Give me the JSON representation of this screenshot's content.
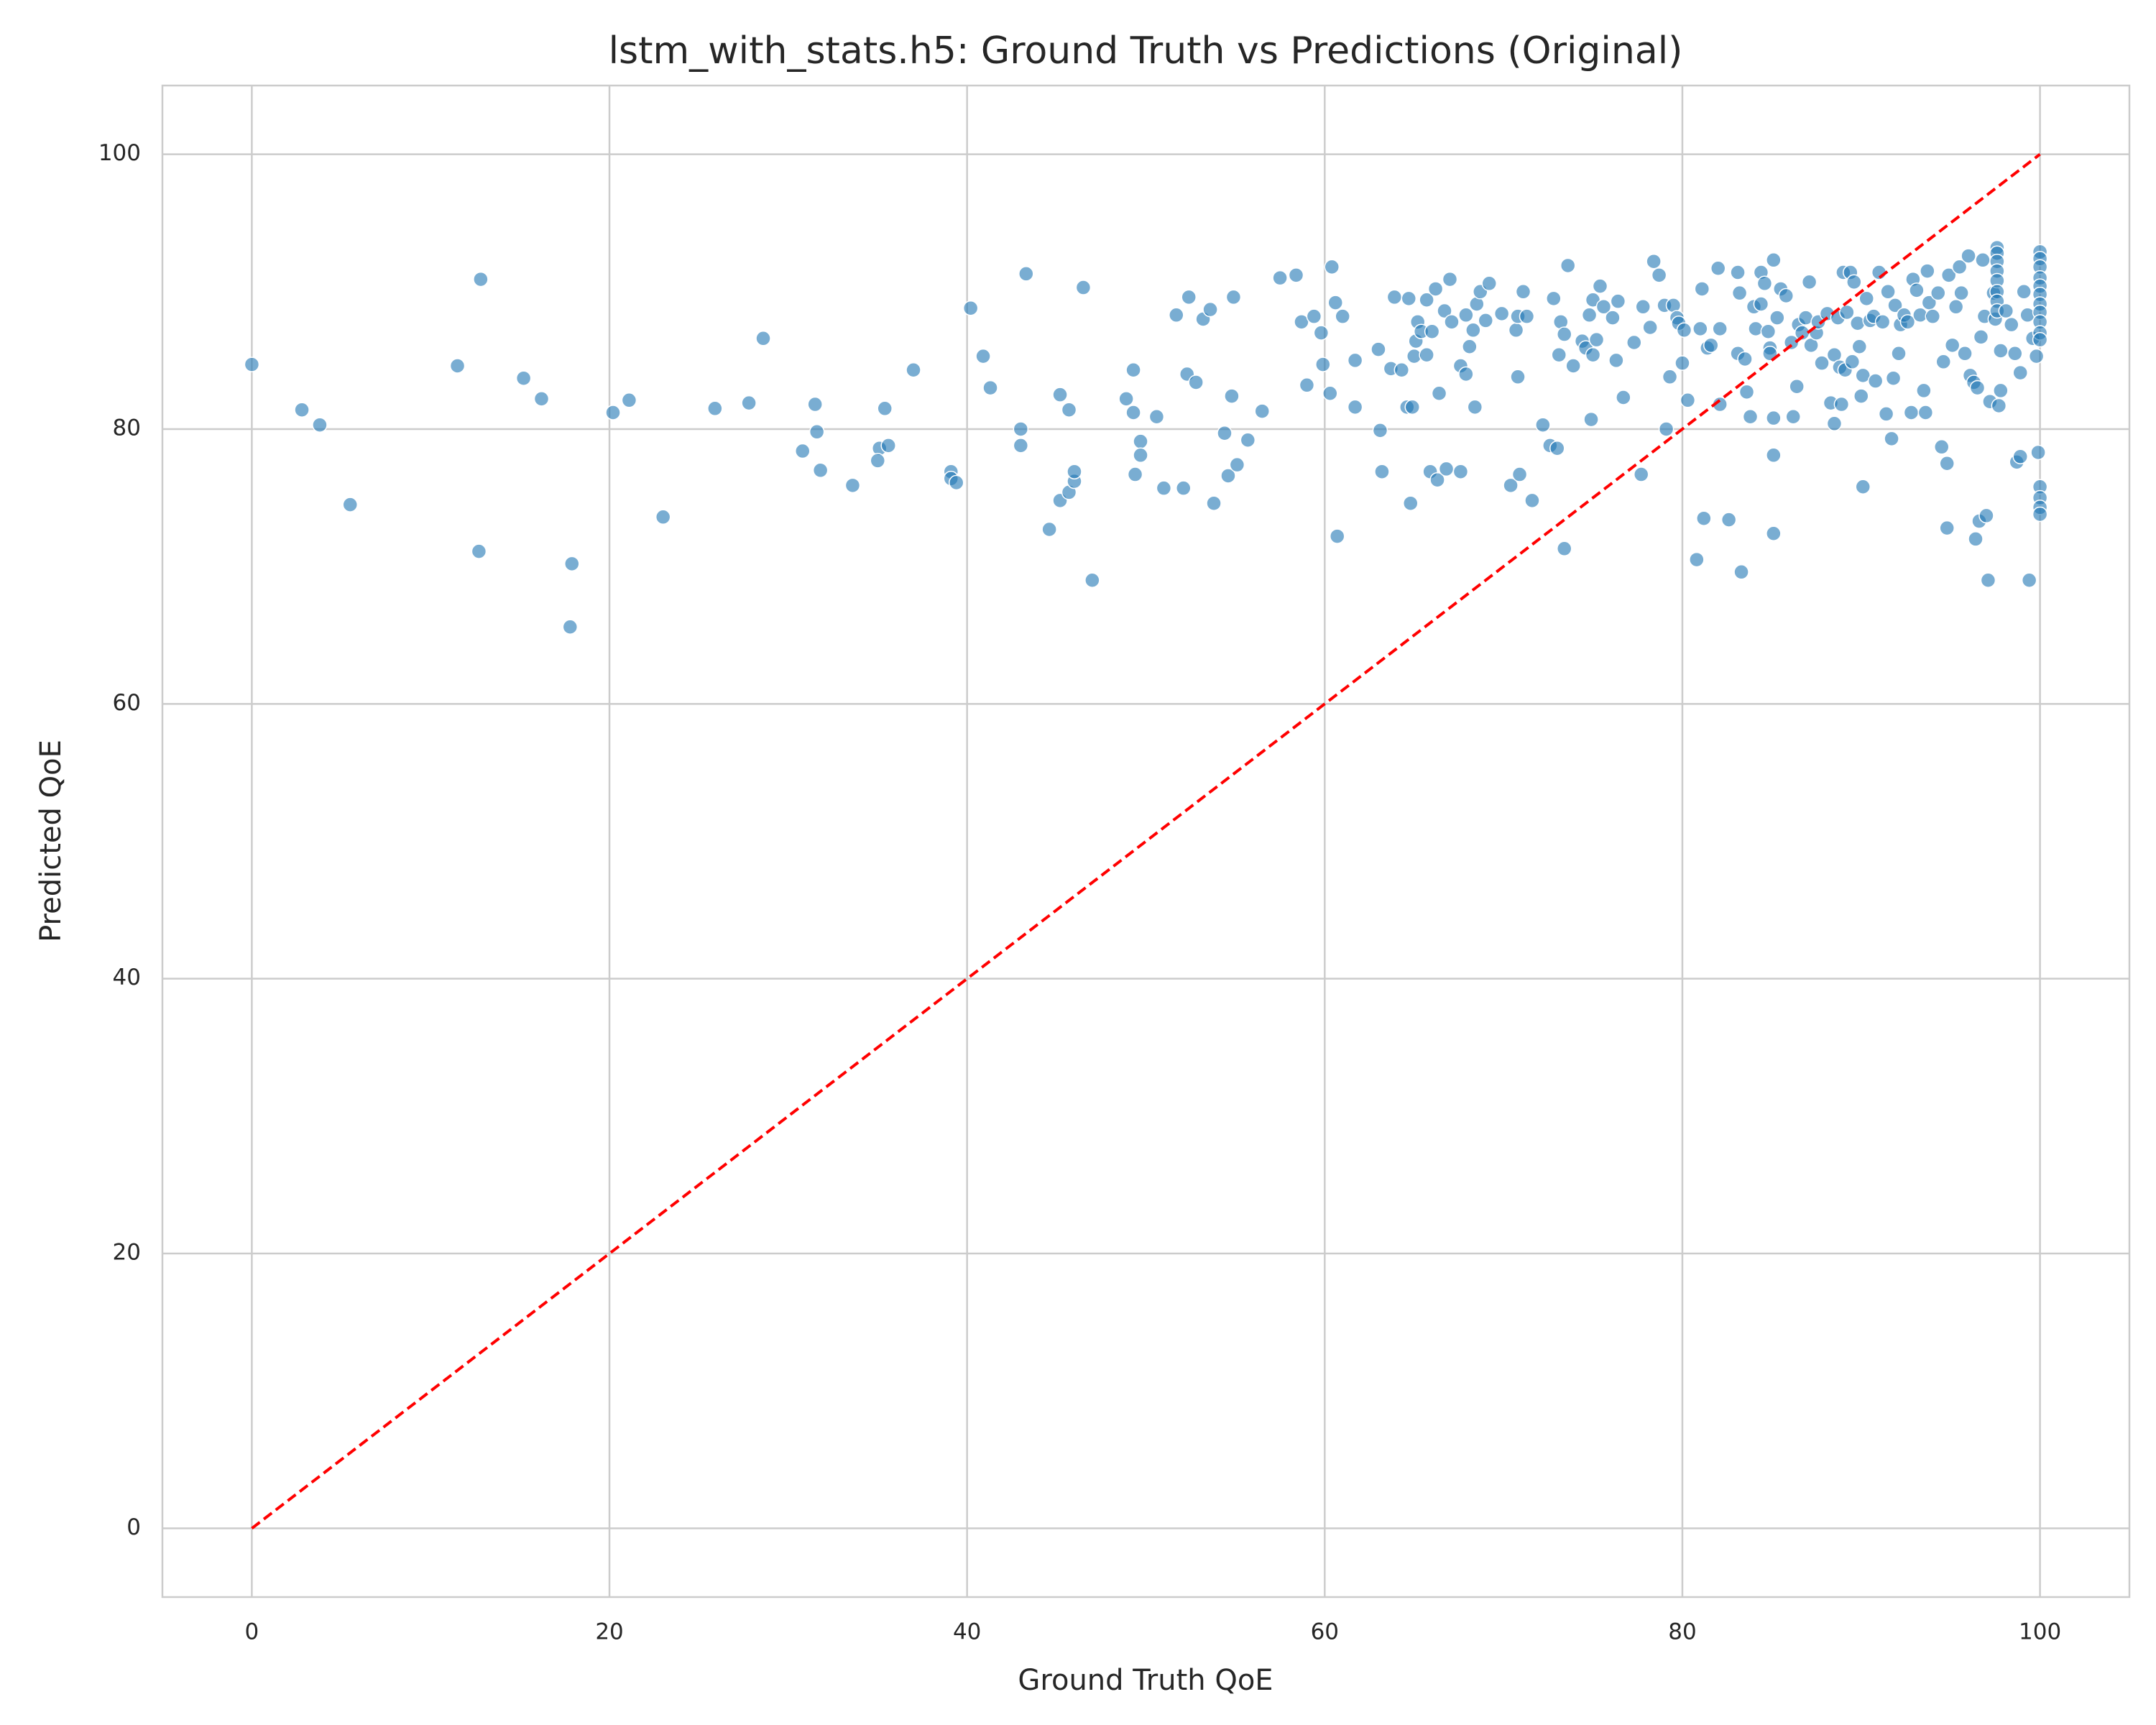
{
  "chart_data": {
    "type": "scatter",
    "title": "lstm_with_stats.h5: Ground Truth vs Predictions (Original)",
    "x_label": "Ground Truth QoE",
    "y_label": "Predicted QoE",
    "xlim": [
      -5,
      105
    ],
    "ylim": [
      -5,
      105
    ],
    "xticks": [
      0,
      20,
      40,
      60,
      80,
      100
    ],
    "yticks": [
      0,
      20,
      40,
      60,
      80,
      100
    ],
    "grid": true,
    "color": "#1f77b4",
    "x": [
      0,
      2.8,
      3.8,
      5.5,
      11.5,
      12.8,
      12.7,
      15.2,
      16.2,
      17.9,
      17.8,
      20.2,
      21.1,
      23.0,
      25.9,
      27.8,
      28.6,
      30.8,
      31.5,
      31.6,
      31.8,
      33.6,
      35.1,
      35.0,
      35.4,
      35.6,
      37.0,
      39.1,
      39.1,
      39.4,
      40.2,
      40.9,
      41.3,
      43.0,
      43.0,
      43.3,
      44.6,
      45.2,
      45.2,
      45.7,
      45.7,
      46.0,
      46.0,
      46.5,
      47.0,
      48.9,
      49.3,
      49.3,
      49.4,
      49.7,
      49.7,
      50.6,
      51.0,
      51.7,
      52.1,
      52.3,
      52.4,
      52.8,
      53.2,
      53.6,
      53.8,
      54.4,
      54.6,
      54.8,
      54.9,
      55.1,
      55.7,
      56.5,
      57.5,
      58.4,
      58.7,
      59.0,
      59.4,
      59.8,
      59.9,
      60.3,
      60.4,
      60.6,
      60.7,
      61.0,
      61.7,
      61.7,
      63.0,
      63.1,
      63.2,
      63.7,
      63.9,
      64.3,
      64.6,
      64.7,
      64.8,
      64.9,
      65.0,
      65.1,
      65.2,
      65.4,
      65.7,
      65.7,
      65.9,
      66.0,
      66.2,
      66.3,
      66.4,
      66.7,
      66.8,
      67.0,
      67.1,
      67.6,
      67.6,
      67.9,
      67.9,
      68.1,
      68.3,
      68.4,
      68.5,
      68.7,
      69.0,
      69.2,
      69.9,
      70.4,
      70.7,
      70.8,
      70.9,
      71.1,
      70.8,
      71.3,
      71.6,
      72.2,
      72.6,
      72.8,
      73.0,
      73.1,
      73.2,
      73.4,
      73.4,
      73.6,
      73.9,
      74.4,
      74.6,
      74.8,
      74.9,
      75.0,
      75.0,
      75.2,
      75.4,
      75.6,
      76.1,
      76.3,
      76.4,
      76.7,
      77.3,
      77.7,
      77.8,
      78.2,
      78.4,
      78.7,
      79.0,
      79.1,
      79.3,
      79.5,
      79.7,
      79.8,
      80.0,
      80.1,
      80.3,
      80.8,
      81.0,
      81.1,
      81.2,
      81.4,
      81.6,
      82.0,
      82.1,
      82.1,
      82.6,
      83.1,
      83.1,
      83.2,
      83.3,
      83.5,
      83.6,
      83.8,
      84.0,
      84.1,
      84.4,
      84.4,
      84.6,
      84.8,
      84.9,
      84.9,
      85.1,
      85.1,
      85.1,
      85.1,
      85.3,
      85.5,
      85.8,
      86.1,
      86.2,
      86.4,
      86.5,
      86.7,
      86.9,
      87.1,
      87.2,
      87.5,
      87.6,
      87.8,
      88.1,
      88.3,
      88.5,
      88.5,
      88.7,
      88.8,
      88.9,
      89.0,
      89.1,
      89.2,
      89.4,
      89.5,
      89.6,
      89.8,
      89.9,
      90.0,
      90.1,
      90.1,
      90.3,
      90.5,
      90.7,
      90.8,
      91.0,
      91.2,
      91.4,
      91.5,
      91.7,
      91.8,
      91.9,
      92.1,
      92.2,
      92.4,
      92.6,
      92.8,
      92.9,
      93.1,
      93.3,
      93.5,
      93.6,
      93.7,
      93.8,
      94.0,
      94.3,
      94.5,
      94.6,
      94.8,
      94.8,
      94.9,
      95.1,
      95.3,
      95.5,
      95.6,
      95.8,
      96.0,
      96.1,
      96.3,
      96.4,
      96.5,
      96.6,
      96.7,
      96.8,
      96.9,
      97.0,
      97.1,
      97.2,
      97.4,
      97.5,
      97.6,
      97.6,
      97.6,
      97.6,
      97.6,
      97.6,
      97.6,
      97.6,
      97.7,
      97.8,
      97.8,
      98.1,
      98.4,
      98.6,
      98.7,
      98.9,
      98.9,
      99.1,
      99.3,
      99.4,
      99.6,
      99.8,
      99.9,
      100,
      100,
      100,
      100,
      100,
      100,
      100,
      100,
      100,
      100,
      100,
      100,
      100,
      100,
      100
    ],
    "values": [
      84.7,
      81.4,
      80.3,
      74.5,
      84.6,
      90.9,
      71.1,
      83.7,
      82.2,
      70.2,
      65.6,
      81.2,
      82.1,
      73.6,
      81.5,
      81.9,
      86.6,
      78.4,
      81.8,
      79.8,
      77.0,
      75.9,
      78.6,
      77.7,
      81.5,
      78.8,
      84.3,
      76.9,
      76.4,
      76.1,
      88.8,
      85.3,
      83.0,
      80.0,
      78.8,
      91.3,
      72.7,
      82.5,
      74.8,
      81.4,
      75.4,
      76.2,
      76.9,
      90.3,
      69.0,
      82.2,
      84.3,
      81.2,
      76.7,
      79.1,
      78.1,
      80.9,
      75.7,
      88.3,
      75.7,
      84.0,
      89.6,
      83.4,
      88.0,
      88.7,
      74.6,
      79.7,
      76.6,
      82.4,
      89.6,
      77.4,
      79.2,
      81.3,
      91.0,
      91.2,
      87.8,
      83.2,
      88.2,
      87.0,
      84.7,
      82.6,
      91.8,
      89.2,
      72.2,
      88.2,
      81.6,
      85.0,
      85.8,
      79.9,
      76.9,
      84.4,
      89.6,
      84.3,
      81.6,
      89.5,
      74.6,
      81.6,
      85.3,
      86.4,
      87.8,
      87.1,
      89.4,
      85.4,
      76.9,
      87.1,
      90.2,
      76.3,
      82.6,
      88.6,
      77.1,
      90.9,
      87.8,
      76.9,
      84.6,
      88.3,
      84.0,
      86.0,
      87.2,
      81.6,
      89.1,
      90.0,
      87.9,
      90.6,
      88.4,
      75.9,
      87.2,
      88.2,
      76.7,
      90.0,
      83.8,
      88.2,
      74.8,
      80.3,
      78.8,
      89.5,
      78.6,
      85.4,
      87.8,
      86.9,
      71.3,
      91.9,
      84.6,
      86.4,
      85.9,
      88.3,
      80.7,
      85.4,
      89.4,
      86.5,
      90.4,
      88.9,
      88.1,
      85.0,
      89.3,
      82.3,
      86.3,
      76.7,
      88.9,
      87.4,
      92.2,
      91.2,
      89.0,
      80.0,
      83.8,
      89.0,
      88.1,
      87.7,
      84.8,
      87.2,
      82.1,
      70.5,
      87.3,
      90.2,
      73.5,
      85.9,
      86.1,
      91.7,
      87.3,
      81.8,
      73.4,
      85.5,
      91.4,
      89.9,
      69.6,
      85.1,
      82.7,
      80.9,
      88.9,
      87.3,
      91.4,
      89.1,
      90.6,
      87.1,
      85.9,
      85.5,
      92.3,
      72.4,
      80.8,
      78.1,
      88.1,
      90.2,
      89.7,
      86.3,
      80.9,
      83.1,
      87.6,
      87.0,
      88.1,
      90.7,
      86.1,
      87.0,
      87.8,
      84.8,
      88.4,
      81.9,
      80.4,
      85.4,
      88.1,
      84.5,
      81.8,
      91.4,
      84.3,
      88.5,
      91.4,
      84.9,
      90.7,
      87.7,
      86.0,
      82.4,
      75.8,
      83.9,
      89.5,
      87.9,
      88.2,
      83.5,
      91.4,
      87.8,
      81.1,
      90.0,
      79.3,
      83.7,
      89.0,
      85.5,
      87.6,
      88.3,
      87.8,
      81.2,
      90.9,
      90.1,
      88.3,
      82.8,
      81.2,
      91.5,
      89.2,
      88.2,
      89.9,
      78.7,
      84.9,
      77.5,
      72.8,
      91.2,
      86.1,
      88.9,
      91.8,
      89.9,
      85.5,
      92.6,
      83.9,
      83.4,
      72.0,
      83.0,
      73.3,
      86.7,
      92.3,
      88.2,
      73.7,
      69.0,
      82.0,
      89.9,
      88.0,
      93.2,
      92.8,
      92.2,
      91.5,
      90.8,
      90.0,
      89.3,
      88.6,
      81.7,
      82.8,
      85.7,
      88.6,
      87.6,
      85.5,
      77.6,
      78.0,
      84.1,
      90.0,
      88.3,
      69.0,
      86.6,
      85.3,
      78.3,
      92.9,
      92.4,
      91.8,
      91.0,
      90.4,
      89.8,
      89.1,
      88.5,
      87.8,
      87.0,
      86.5,
      75.8,
      75.0,
      74.3,
      73.8
    ],
    "reference_line": {
      "x": [
        0,
        100
      ],
      "y": [
        0,
        100
      ],
      "color": "#ff0000"
    }
  }
}
